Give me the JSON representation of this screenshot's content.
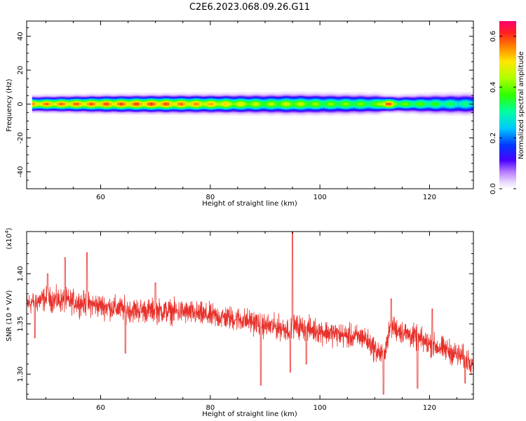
{
  "figure": {
    "title": "C2E6.2023.068.09.26.G11"
  },
  "chart_data": [
    {
      "type": "heatmap",
      "title": "C2E6.2023.068.09.26.G11",
      "xlabel": "Height of straight line (km)",
      "ylabel": "Frequency (Hz)",
      "xlim": [
        46.5,
        128
      ],
      "ylim": [
        -50,
        49
      ],
      "xticks": [
        60,
        80,
        100,
        120
      ],
      "yticks": [
        -40,
        -20,
        0,
        20,
        40
      ],
      "xtick_labels": [
        "60",
        "80",
        "100",
        "120"
      ],
      "ytick_labels": [
        "-40",
        "-20",
        "0",
        "20",
        "40"
      ],
      "data_x_range": [
        47.5,
        128
      ],
      "band_center_hz": 0,
      "band_halfwidth_hz": [
        {
          "x": 47.5,
          "w": 4.0
        },
        {
          "x": 60,
          "w": 4.5
        },
        {
          "x": 80,
          "w": 4.8
        },
        {
          "x": 94,
          "w": 5.2
        },
        {
          "x": 100,
          "w": 5.2
        },
        {
          "x": 110,
          "w": 5.0
        },
        {
          "x": 112,
          "w": 4.0
        },
        {
          "x": 120,
          "w": 5.0
        },
        {
          "x": 128,
          "w": 5.5
        }
      ],
      "peak_amplitude": [
        {
          "x": 47.5,
          "a": 0.55
        },
        {
          "x": 60,
          "a": 0.57
        },
        {
          "x": 70,
          "a": 0.58
        },
        {
          "x": 80,
          "a": 0.52
        },
        {
          "x": 90,
          "a": 0.42
        },
        {
          "x": 95,
          "a": 0.45
        },
        {
          "x": 100,
          "a": 0.4
        },
        {
          "x": 105,
          "a": 0.4
        },
        {
          "x": 110,
          "a": 0.38
        },
        {
          "x": 112,
          "a": 0.62
        },
        {
          "x": 114,
          "a": 0.4
        },
        {
          "x": 120,
          "a": 0.36
        },
        {
          "x": 128,
          "a": 0.3
        }
      ],
      "colorbar": {
        "label": "Normalized spectral amplitude",
        "range": [
          0,
          0.66
        ],
        "ticks": [
          0.0,
          0.2,
          0.4,
          0.6
        ],
        "tick_labels": [
          "0.0",
          "0.2",
          "0.4",
          "0.6"
        ],
        "colormap": "rainbow"
      },
      "grid": false
    },
    {
      "type": "line",
      "xlabel": "Height of straight line (km)",
      "ylabel": "SNR (10 * V/V)",
      "y_multiplier": "(x10",
      "y_multiplier_exp": "4",
      "y_multiplier_close": ")",
      "xlim": [
        46.5,
        128
      ],
      "ylim": [
        1.275,
        1.442
      ],
      "xticks": [
        60,
        80,
        100,
        120
      ],
      "xtick_labels": [
        "60",
        "80",
        "100",
        "120"
      ],
      "yticks": [
        1.3,
        1.35,
        1.4
      ],
      "ytick_labels": [
        "1.30",
        "1.35",
        "1.40"
      ],
      "series": [
        {
          "color": "#e8302a",
          "x_range": [
            46.5,
            128
          ],
          "trend": [
            {
              "x": 46.5,
              "y": 1.37
            },
            {
              "x": 50,
              "y": 1.375
            },
            {
              "x": 55,
              "y": 1.372
            },
            {
              "x": 60,
              "y": 1.368
            },
            {
              "x": 65,
              "y": 1.364
            },
            {
              "x": 70,
              "y": 1.363
            },
            {
              "x": 75,
              "y": 1.362
            },
            {
              "x": 80,
              "y": 1.358
            },
            {
              "x": 85,
              "y": 1.355
            },
            {
              "x": 88,
              "y": 1.352
            },
            {
              "x": 90,
              "y": 1.348
            },
            {
              "x": 92,
              "y": 1.347
            },
            {
              "x": 94,
              "y": 1.345
            },
            {
              "x": 95,
              "y": 1.348
            },
            {
              "x": 97,
              "y": 1.346
            },
            {
              "x": 100,
              "y": 1.343
            },
            {
              "x": 103,
              "y": 1.34
            },
            {
              "x": 106,
              "y": 1.337
            },
            {
              "x": 108,
              "y": 1.337
            },
            {
              "x": 110,
              "y": 1.325
            },
            {
              "x": 111.5,
              "y": 1.318
            },
            {
              "x": 113,
              "y": 1.348
            },
            {
              "x": 115,
              "y": 1.342
            },
            {
              "x": 118,
              "y": 1.335
            },
            {
              "x": 120,
              "y": 1.33
            },
            {
              "x": 124,
              "y": 1.322
            },
            {
              "x": 128,
              "y": 1.312
            }
          ],
          "noise_amplitude": 0.011,
          "spikes": [
            {
              "x": 48.0,
              "y": 1.336
            },
            {
              "x": 50.3,
              "y": 1.4
            },
            {
              "x": 53.5,
              "y": 1.416
            },
            {
              "x": 57.5,
              "y": 1.421
            },
            {
              "x": 64.5,
              "y": 1.321
            },
            {
              "x": 70.0,
              "y": 1.391
            },
            {
              "x": 89.2,
              "y": 1.289
            },
            {
              "x": 94.6,
              "y": 1.302
            },
            {
              "x": 95.0,
              "y": 1.442
            },
            {
              "x": 97.5,
              "y": 1.31
            },
            {
              "x": 111.6,
              "y": 1.28
            },
            {
              "x": 113.0,
              "y": 1.375
            },
            {
              "x": 117.8,
              "y": 1.286
            },
            {
              "x": 120.5,
              "y": 1.365
            },
            {
              "x": 126.5,
              "y": 1.291
            }
          ]
        }
      ],
      "grid": false
    }
  ]
}
